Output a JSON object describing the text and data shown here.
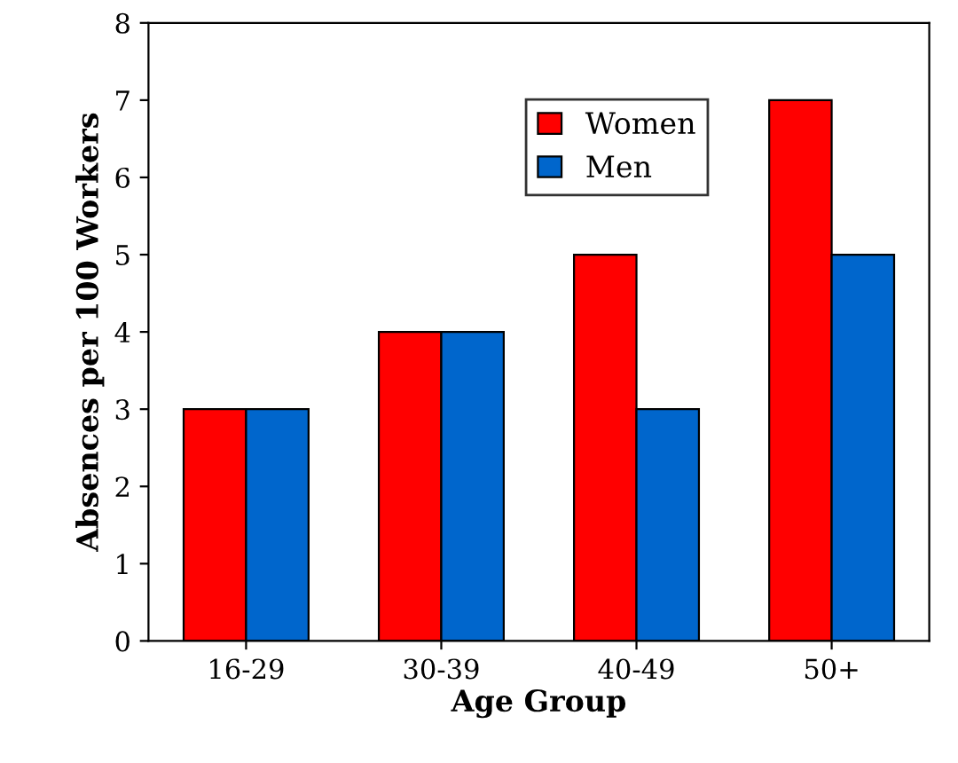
{
  "chart_data": {
    "type": "bar",
    "xlabel": "Age Group",
    "ylabel": "Absences per 100 Workers",
    "categories": [
      "16-29",
      "30-39",
      "40-49",
      "50+"
    ],
    "series": [
      {
        "name": "Women",
        "color": "#ff0000",
        "values": [
          3,
          4,
          5,
          7
        ]
      },
      {
        "name": "Men",
        "color": "#0066cc",
        "values": [
          3,
          4,
          3,
          5
        ]
      }
    ],
    "ylim": [
      0,
      8
    ],
    "yticks": [
      0,
      1,
      2,
      3,
      4,
      5,
      6,
      7,
      8
    ],
    "grid": false,
    "legend": "top"
  }
}
